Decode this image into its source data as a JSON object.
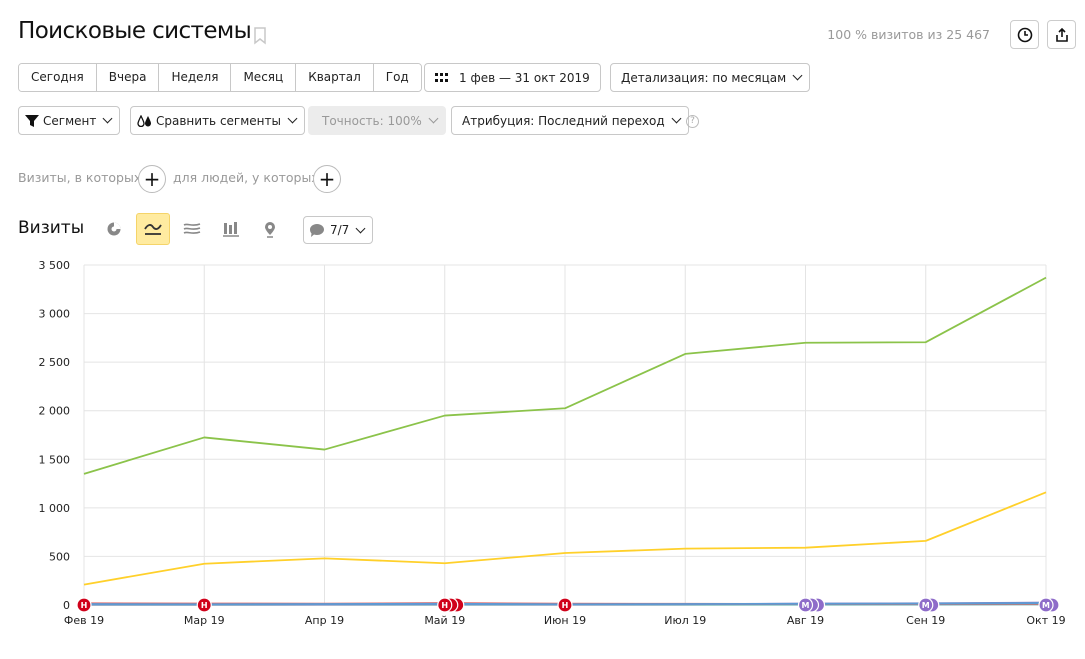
{
  "header": {
    "title": "Поисковые системы",
    "visits_info": "100 % визитов из 25 467"
  },
  "period_buttons": [
    "Сегодня",
    "Вчера",
    "Неделя",
    "Месяц",
    "Квартал",
    "Год"
  ],
  "date_range": "1 фев — 31 окт 2019",
  "detail": "Детализация: по месяцам",
  "segment": "Сегмент",
  "compare": "Сравнить сегменты",
  "accuracy": "Точность: 100%",
  "attribution": "Атрибуция: Последний переход",
  "help_icon": "?",
  "filters": {
    "visits_label": "Визиты, в которых",
    "people_label": "для людей, у которых",
    "plus": "+"
  },
  "chart_section": {
    "title": "Визиты",
    "legend_count": "7/7"
  },
  "chart_data": {
    "type": "line",
    "categories": [
      "Фев 19",
      "Мар 19",
      "Апр 19",
      "Май 19",
      "Июн 19",
      "Июл 19",
      "Авг 19",
      "Сен 19",
      "Окт 19"
    ],
    "ylim": [
      0,
      3500
    ],
    "yticks": [
      0,
      500,
      1000,
      1500,
      2000,
      2500,
      3000,
      3500
    ],
    "ytick_labels": [
      "0",
      "500",
      "1 000",
      "1 500",
      "2 000",
      "2 500",
      "3 000",
      "3 500"
    ],
    "grid": true,
    "series": [
      {
        "color": "#8bc34a",
        "values": [
          1350,
          1725,
          1600,
          1950,
          2025,
          2585,
          2700,
          2705,
          3370
        ]
      },
      {
        "color": "#ffd02a",
        "values": [
          210,
          425,
          480,
          430,
          535,
          580,
          590,
          660,
          1160
        ]
      },
      {
        "color": "#5b9bd5",
        "values": [
          10,
          8,
          10,
          12,
          8,
          10,
          12,
          15,
          20
        ]
      },
      {
        "color": "#e06666",
        "values": [
          18,
          15,
          14,
          20,
          14,
          12,
          10,
          10,
          12
        ]
      },
      {
        "color": "#8e7cc3",
        "values": [
          5,
          5,
          6,
          8,
          6,
          8,
          15,
          18,
          25
        ]
      },
      {
        "color": "#4db6ac",
        "values": [
          3,
          3,
          4,
          5,
          4,
          5,
          6,
          7,
          8
        ]
      },
      {
        "color": "#b0bec5",
        "values": [
          1,
          1,
          2,
          2,
          2,
          2,
          3,
          3,
          4
        ]
      }
    ],
    "annotations": [
      {
        "x_index": 0,
        "label": "Н",
        "color": "#d0021b",
        "count": 1
      },
      {
        "x_index": 1,
        "label": "Н",
        "color": "#d0021b",
        "count": 1
      },
      {
        "x_index": 3,
        "label": "Н",
        "color": "#d0021b",
        "count": 3
      },
      {
        "x_index": 4,
        "label": "Н",
        "color": "#d0021b",
        "count": 1
      },
      {
        "x_index": 6,
        "label": "М",
        "color": "#8e6cc9",
        "count": 3
      },
      {
        "x_index": 7,
        "label": "М",
        "color": "#8e6cc9",
        "count": 2
      },
      {
        "x_index": 8,
        "label": "М",
        "color": "#8e6cc9",
        "count": 2
      }
    ]
  }
}
